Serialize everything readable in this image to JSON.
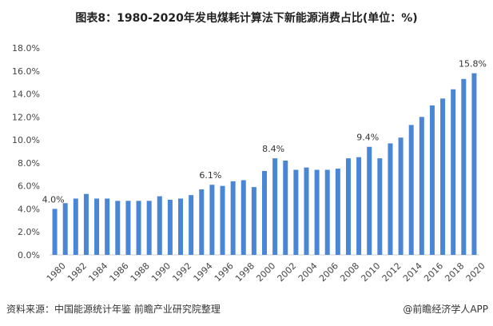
{
  "chart_data": {
    "type": "bar",
    "title": "图表8：1980-2020年发电煤耗计算法下新能源消费占比(单位：%)",
    "xlabel": "",
    "ylabel": "",
    "ylim": [
      0,
      18
    ],
    "yticks": [
      "0.0%",
      "2.0%",
      "4.0%",
      "6.0%",
      "8.0%",
      "10.0%",
      "12.0%",
      "14.0%",
      "16.0%",
      "18.0%"
    ],
    "grid": false,
    "bar_color": "#4a86d6",
    "categories": [
      "1980",
      "1981",
      "1982",
      "1983",
      "1984",
      "1985",
      "1986",
      "1987",
      "1988",
      "1989",
      "1990",
      "1991",
      "1992",
      "1993",
      "1994",
      "1995",
      "1996",
      "1997",
      "1998",
      "1999",
      "2000",
      "2001",
      "2002",
      "2003",
      "2004",
      "2005",
      "2006",
      "2007",
      "2008",
      "2009",
      "2010",
      "2011",
      "2012",
      "2013",
      "2014",
      "2015",
      "2016",
      "2017",
      "2018",
      "2019",
      "2020"
    ],
    "xtick_labels": [
      "1980",
      "1982",
      "1984",
      "1986",
      "1988",
      "1990",
      "1992",
      "1994",
      "1996",
      "1998",
      "2000",
      "2002",
      "2004",
      "2006",
      "2008",
      "2010",
      "2012",
      "2014",
      "2016",
      "2018",
      "2020"
    ],
    "values": [
      4.0,
      4.5,
      4.9,
      5.3,
      4.9,
      4.9,
      4.7,
      4.7,
      4.7,
      4.7,
      5.1,
      4.8,
      4.9,
      5.2,
      5.7,
      6.1,
      6.0,
      6.4,
      6.5,
      5.9,
      7.3,
      8.4,
      8.2,
      7.4,
      7.6,
      7.4,
      7.4,
      7.5,
      8.4,
      8.5,
      9.4,
      8.4,
      9.7,
      10.2,
      11.3,
      12.0,
      13.0,
      13.6,
      14.4,
      15.3,
      15.8
    ],
    "data_labels": [
      {
        "category": "1980",
        "text": "4.0%"
      },
      {
        "category": "1995",
        "text": "6.1%"
      },
      {
        "category": "2001",
        "text": "8.4%"
      },
      {
        "category": "2010",
        "text": "9.4%"
      },
      {
        "category": "2020",
        "text": "15.8%"
      }
    ]
  },
  "footer": {
    "source": "资料来源：中国能源统计年鉴 前瞻产业研究院整理",
    "brand": "@前瞻经济学人APP"
  }
}
